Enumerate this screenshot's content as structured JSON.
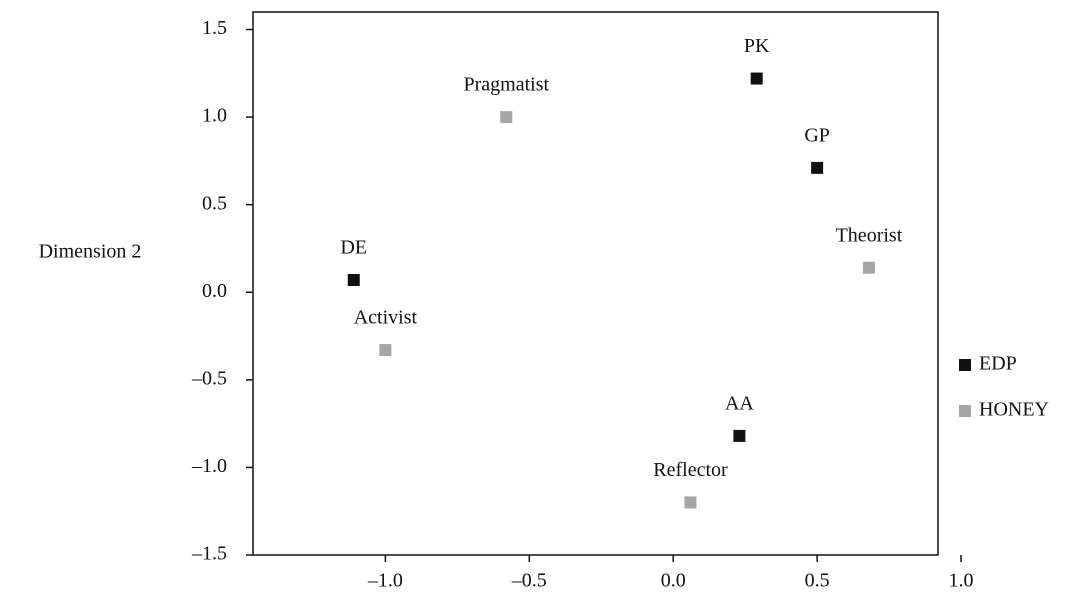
{
  "chart_data": {
    "type": "scatter",
    "y_label": "Dimension 2",
    "xlim": [
      -1.46,
      0.92
    ],
    "ylim": [
      -1.5,
      1.6
    ],
    "xticks": [
      {
        "value": -1.0,
        "label": "–1.0"
      },
      {
        "value": -0.5,
        "label": "–0.5"
      },
      {
        "value": 0.0,
        "label": "0.0"
      },
      {
        "value": 0.5,
        "label": "0.5"
      },
      {
        "value": 1.0,
        "label": "1.0"
      }
    ],
    "yticks": [
      {
        "value": -1.5,
        "label": "–1.5"
      },
      {
        "value": -1.0,
        "label": "–1.0"
      },
      {
        "value": -0.5,
        "label": "–0.5"
      },
      {
        "value": 0.0,
        "label": "0.0"
      },
      {
        "value": 0.5,
        "label": "0.5"
      },
      {
        "value": 1.0,
        "label": "1.0"
      },
      {
        "value": 1.5,
        "label": "1.5"
      }
    ],
    "series": [
      {
        "name": "EDP",
        "color": "#111111",
        "labels": [
          "PK",
          "GP",
          "DE",
          "AA"
        ],
        "x": [
          0.29,
          0.5,
          -1.11,
          0.23
        ],
        "values": [
          1.22,
          0.71,
          0.07,
          -0.82
        ]
      },
      {
        "name": "HONEY",
        "color": "#a6a6a6",
        "labels": [
          "Pragmatist",
          "Theorist",
          "Activist",
          "Reflector"
        ],
        "x": [
          -0.58,
          0.68,
          -1.0,
          0.06
        ],
        "values": [
          1.0,
          0.14,
          -0.33,
          -1.2
        ]
      }
    ],
    "legend": "right"
  }
}
